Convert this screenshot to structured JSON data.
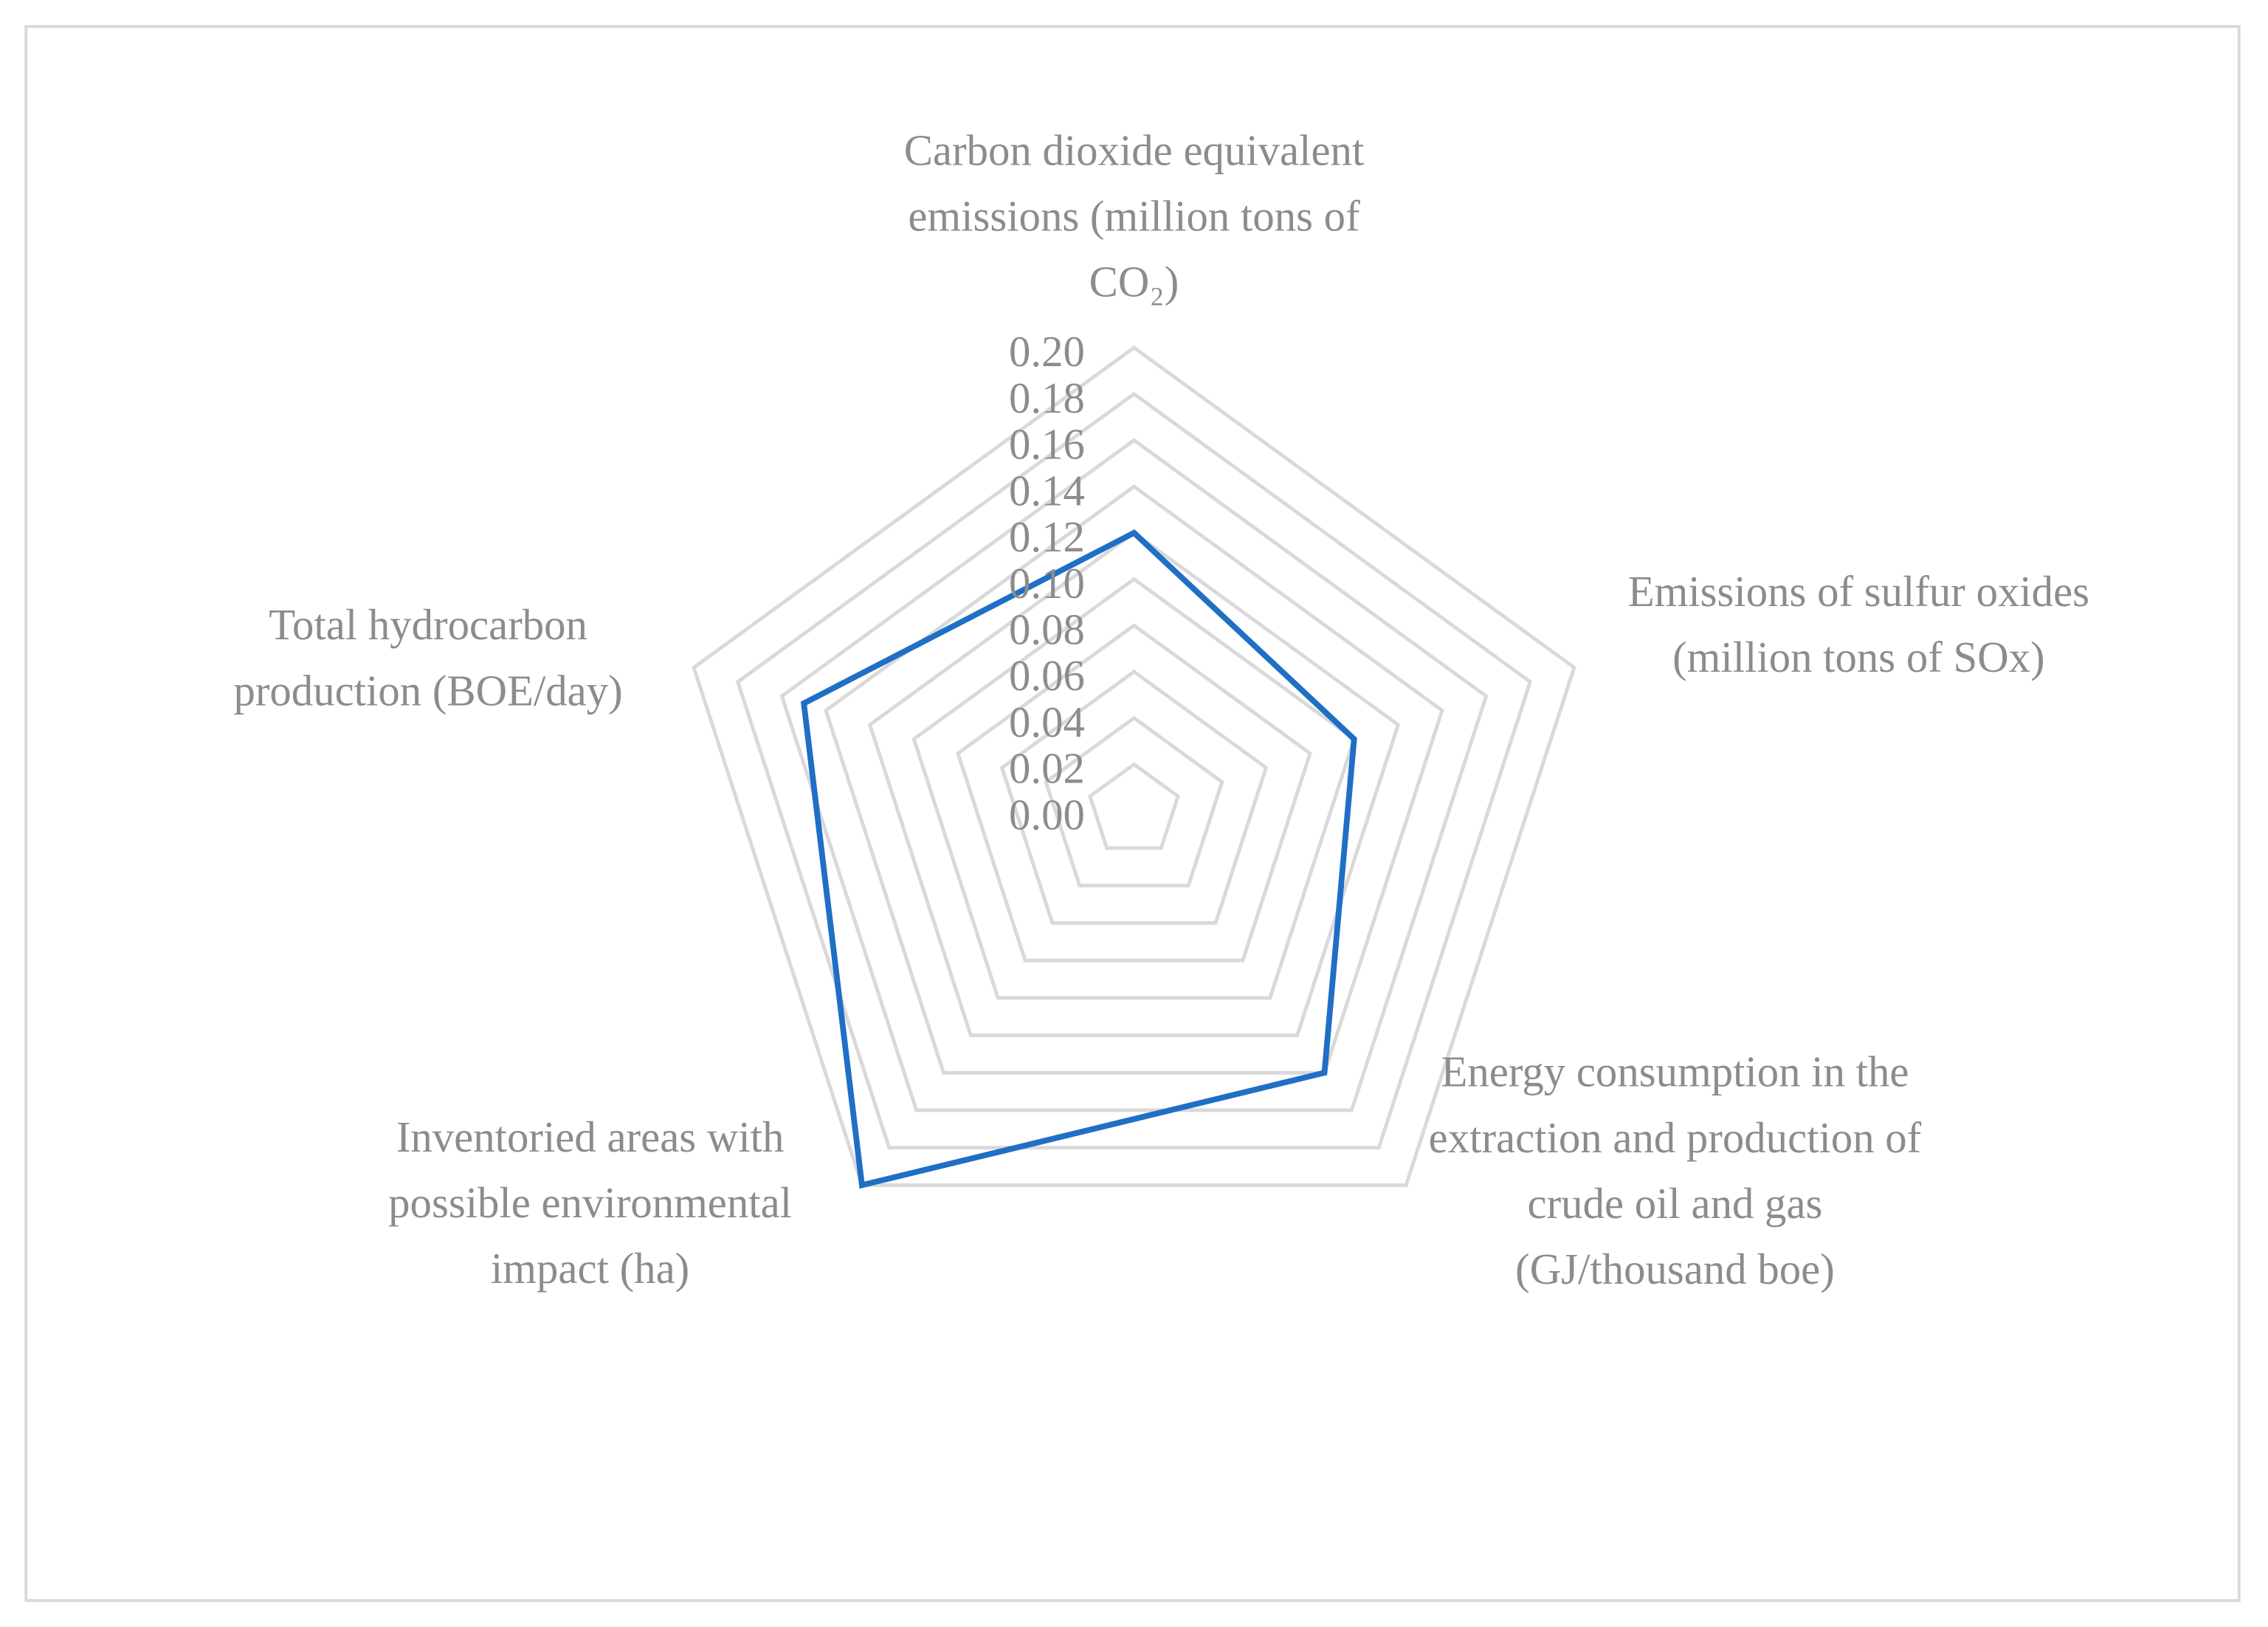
{
  "chart_data": {
    "type": "radar",
    "categories": [
      "Carbon dioxide equivalent emissions (million tons of CO₂)",
      "Emissions of sulfur oxides (million tons of SOx)",
      "Energy consumption in the extraction and production of crude oil and gas (GJ/thousand boe)",
      "Inventoried areas with possible environmental impact (ha)",
      "Total hydrocarbon production (BOE/day)"
    ],
    "values": [
      0.12,
      0.1,
      0.14,
      0.2,
      0.15
    ],
    "color": "#1f6fc5",
    "ylim": [
      0,
      0.2
    ],
    "yticks": [
      {
        "value": 0,
        "label": "0.00"
      },
      {
        "value": 0.02,
        "label": "0.02"
      },
      {
        "value": 0.04,
        "label": "0.04"
      },
      {
        "value": 0.06,
        "label": "0.06"
      },
      {
        "value": 0.08,
        "label": "0.08"
      },
      {
        "value": 0.1,
        "label": "0.10"
      },
      {
        "value": 0.12,
        "label": "0.12"
      },
      {
        "value": 0.14,
        "label": "0.14"
      },
      {
        "value": 0.16,
        "label": "0.16"
      },
      {
        "value": 0.18,
        "label": "0.18"
      },
      {
        "value": 0.2,
        "label": "0.20"
      }
    ],
    "grid": true
  }
}
